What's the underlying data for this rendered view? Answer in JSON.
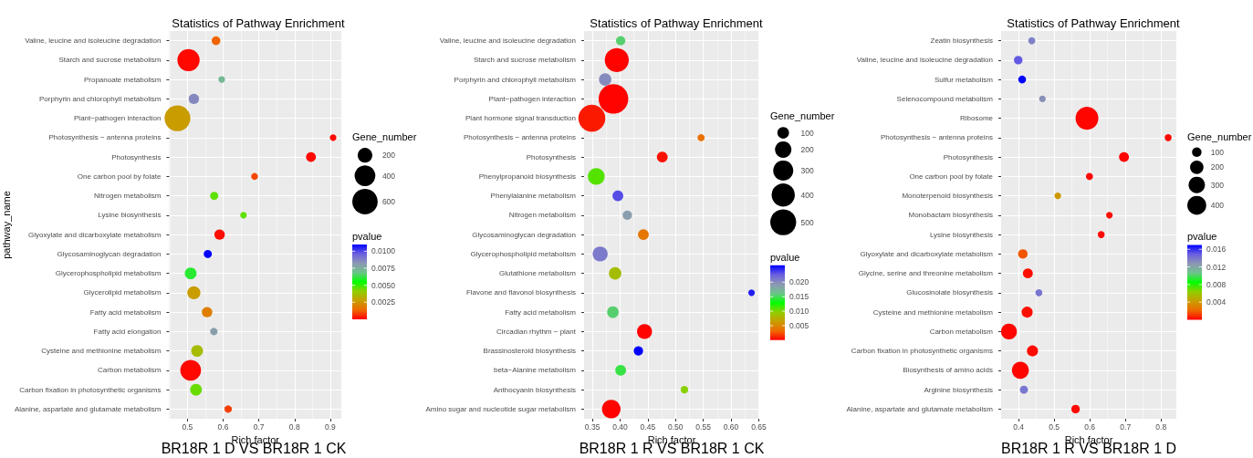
{
  "chart_data": [
    {
      "type": "bubble",
      "title": "Statistics of Pathway Enrichment",
      "xlabel": "Rich factor",
      "ylabel": "pathway_name",
      "orientation": "horizontal",
      "grid": true,
      "legend_title": "Gene_number",
      "clabel": "pvalue",
      "categories": [
        "Valine, leucine and isoleucine degradation",
        "Starch and sucrose metabolism",
        "Propanoate metabolism",
        "Porphyrin and chlorophyll metabolism",
        "Plant−pathogen interaction",
        "Photosynthesis − antenna proteins",
        "Photosynthesis",
        "One carbon pool by folate",
        "Nitrogen metabolism",
        "Lysine biosynthesis",
        "Glyoxylate and dicarboxylate metabolism",
        "Glycosaminoglycan degradation",
        "Glycerophospholipid metabolism",
        "Glycerolipid metabolism",
        "Fatty acid metabolism",
        "Fatty acid elongation",
        "Cysteine and methionine metabolism",
        "Carbon metabolism",
        "Carbon fixation in photosynthetic organisms",
        "Alanine, aspartate and glutamate metabolism"
      ],
      "values": [
        0.58,
        0.503,
        0.596,
        0.518,
        0.472,
        0.908,
        0.846,
        0.688,
        0.575,
        0.657,
        0.59,
        0.557,
        0.509,
        0.518,
        0.555,
        0.574,
        0.527,
        0.509,
        0.524,
        0.614
      ],
      "sizes": [
        70,
        460,
        42,
        100,
        620,
        40,
        90,
        43,
        62,
        40,
        100,
        62,
        130,
        160,
        100,
        50,
        130,
        400,
        130,
        50
      ],
      "size_legend": [
        200,
        400,
        600
      ],
      "cvalues": [
        0.0013,
        0.0001,
        0.0072,
        0.0086,
        0.0027,
        0.0001,
        0.0001,
        0.0009,
        0.0046,
        0.0046,
        0.0002,
        0.011,
        0.006,
        0.0027,
        0.0019,
        0.008,
        0.0036,
        0.0001,
        0.0045,
        0.0008
      ],
      "clim": [
        0,
        0.011
      ],
      "cticks": [
        0.0025,
        {
          "value": 0.005,
          "label": "0.0050"
        },
        0.0075,
        {
          "value": 0.01,
          "label": "0.0100"
        }
      ],
      "xlim": [
        0.449,
        0.931
      ],
      "xticks": [
        0.5,
        0.6,
        0.7,
        0.8,
        0.9
      ],
      "annotations": [
        "BR18R 1 D VS BR18R 1 CK"
      ]
    },
    {
      "type": "bubble",
      "title": "Statistics of Pathway Enrichment",
      "xlabel": "Rich factor",
      "orientation": "horizontal",
      "grid": true,
      "legend_title": "Gene_number",
      "clabel": "pvalue",
      "categories": [
        "Valine, leucine and isoleucine degradation",
        "Starch and sucrose metabolism",
        "Porphyrin and chlorophyll metabolism",
        "Plant−pathogen interaction",
        "Plant hormone signal transduction",
        "Photosynthesis − antenna proteins",
        "Photosynthesis",
        "Phenylpropanoid biosynthesis",
        "Phenylalanine metabolism",
        "Nitrogen metabolism",
        "Glycosaminoglycan degradation",
        "Glycerophospholipid metabolism",
        "Glutathione metabolism",
        "Flavone and flavonol biosynthesis",
        "Fatty acid metabolism",
        "Circadian rhythm − plant",
        "Brassinosteroid biosynthesis",
        "beta−Alanine metabolism",
        "Anthocyanin biosynthesis",
        "Amino sugar and nucleotide sugar metabolism"
      ],
      "values": [
        0.401,
        0.394,
        0.373,
        0.388,
        0.349,
        0.546,
        0.476,
        0.357,
        0.396,
        0.413,
        0.442,
        0.364,
        0.391,
        0.637,
        0.387,
        0.444,
        0.433,
        0.401,
        0.516,
        0.384
      ],
      "sizes": [
        65,
        430,
        115,
        650,
        540,
        38,
        87,
        210,
        87,
        65,
        87,
        167,
        115,
        32,
        100,
        167,
        65,
        87,
        42,
        256
      ],
      "size_legend": [
        100,
        200,
        300,
        400,
        500
      ],
      "cvalues": [
        0.0155,
        0.0001,
        0.02,
        0.0001,
        0.0008,
        0.0036,
        0.0005,
        0.011,
        0.0232,
        0.0188,
        0.004,
        0.021,
        0.0085,
        0.0248,
        0.0155,
        0.0001,
        0.0258,
        0.0145,
        0.0098,
        0.0001
      ],
      "clim": [
        0,
        0.0258
      ],
      "cticks": [
        0.005,
        {
          "value": 0.01,
          "label": "0.010"
        },
        0.015,
        {
          "value": 0.02,
          "label": "0.020"
        }
      ],
      "xlim": [
        0.335,
        0.651
      ],
      "xticks": [
        0.35,
        {
          "value": 0.4,
          "label": "0.40"
        },
        0.45,
        {
          "value": 0.5,
          "label": "0.50"
        },
        0.55,
        {
          "value": 0.6,
          "label": "0.60"
        },
        0.65
      ],
      "annotations": [
        "BR18R 1 R VS BR18R 1 CK"
      ]
    },
    {
      "type": "bubble",
      "title": "Statistics of Pathway Enrichment",
      "xlabel": "Rich factor",
      "orientation": "horizontal",
      "grid": true,
      "legend_title": "Gene_number",
      "clabel": "pvalue",
      "categories": [
        "Zeatin biosynthesis",
        "Valine, leucine and isoleucine degradation",
        "Sulfur metabolism",
        "Selenocompound metabolism",
        "Ribosome",
        "Photosynthesis − antenna proteins",
        "Photosynthesis",
        "One carbon pool by folate",
        "Monoterpenoid biosynthesis",
        "Monobactam biosynthesis",
        "Lysine biosynthesis",
        "Glyoxylate and dicarboxylate metabolism",
        "Glycine, serine and threonine metabolism",
        "Glucosinolate biosynthesis",
        "Cysteine and methionine metabolism",
        "Carbon metabolism",
        "Carbon fixation in photosynthetic organisms",
        "Biosynthesis of amino acids",
        "Arginine biosynthesis",
        "Alanine, aspartate and glutamate metabolism"
      ],
      "values": [
        0.437,
        0.399,
        0.41,
        0.467,
        0.592,
        0.82,
        0.696,
        0.599,
        0.51,
        0.655,
        0.632,
        0.412,
        0.426,
        0.457,
        0.424,
        0.373,
        0.439,
        0.405,
        0.415,
        0.56
      ],
      "sizes": [
        56,
        81,
        67,
        50,
        580,
        53,
        110,
        56,
        50,
        48,
        53,
        100,
        110,
        53,
        136,
        280,
        136,
        322,
        73,
        81
      ],
      "size_legend": [
        100,
        200,
        300,
        400
      ],
      "cvalues": [
        0.0136,
        0.015,
        0.017,
        0.013,
        0.0001,
        0.0001,
        0.0001,
        0.0001,
        0.004,
        0.0002,
        0.0002,
        0.0017,
        0.0003,
        0.014,
        0.0003,
        0.0001,
        0.0002,
        0.0001,
        0.014,
        0.0002
      ],
      "clim": [
        0,
        0.017
      ],
      "cticks": [
        0.004,
        0.008,
        0.012,
        0.016
      ],
      "xlim": [
        0.351,
        0.843
      ],
      "xticks": [
        0.4,
        0.5,
        0.6,
        0.7,
        0.8
      ],
      "annotations": [
        "BR18R 1 R VS BR18R 1 D"
      ]
    }
  ]
}
